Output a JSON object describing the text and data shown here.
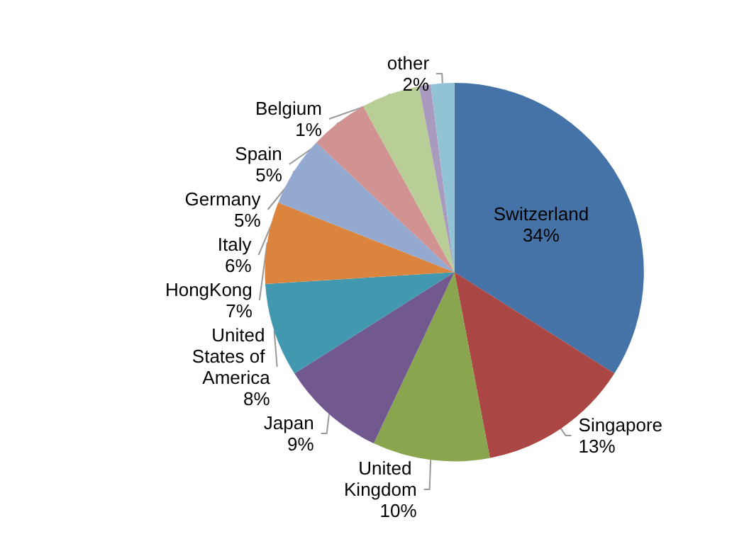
{
  "chart_data": {
    "type": "pie",
    "categories": [
      "Switzerland",
      "Singapore",
      "United Kingdom",
      "Japan",
      "United States of America",
      "HongKong",
      "Italy",
      "Germany",
      "Spain",
      "Belgium",
      "other"
    ],
    "values": [
      34,
      13,
      10,
      9,
      8,
      7,
      6,
      5,
      5,
      1,
      2
    ],
    "value_labels": [
      "34%",
      "13%",
      "10%",
      "9%",
      "8%",
      "7%",
      "6%",
      "5%",
      "5%",
      "1%",
      "2%"
    ],
    "colors": [
      "#4572a7",
      "#aa4643",
      "#89a54e",
      "#71588f",
      "#4198af",
      "#db843d",
      "#93a9cf",
      "#d19392",
      "#b9cd96",
      "#a99bbd",
      "#91c3d5"
    ],
    "legend": false
  }
}
